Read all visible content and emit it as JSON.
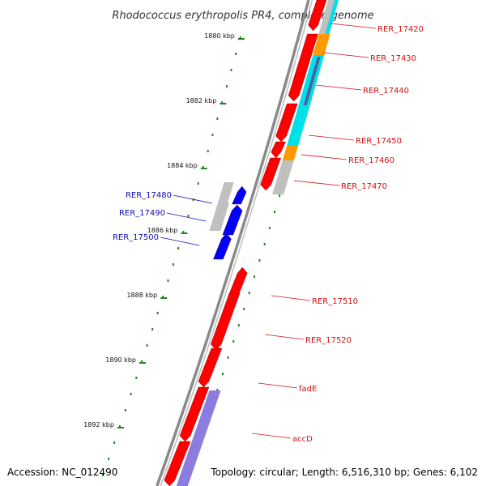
{
  "title": "Rhodococcus erythropolis PR4, complete genome",
  "accession": "Accession: NC_012490",
  "topology": "Topology: circular; Length: 6,516,310 bp; Genes: 6,102",
  "colors": {
    "backbone": "#8a8a8a",
    "ticks": "#1a8a1a",
    "right_label": "#d01010",
    "left_label": "#1010b0",
    "red_gene": "#ff0000",
    "blue_gene": "#0000ff",
    "cyan_feature": "#00e0e8",
    "orange_feature": "#ff9900",
    "grey_feature": "#c0c0c0",
    "purple_feature": "#8c7ce0"
  },
  "kbp_labels": [
    {
      "text": "1880 kbp",
      "value": 1880
    },
    {
      "text": "1882 kbp",
      "value": 1882
    },
    {
      "text": "1884 kbp",
      "value": 1884
    },
    {
      "text": "1886 kbp",
      "value": 1886
    },
    {
      "text": "1888 kbp",
      "value": 1888
    },
    {
      "text": "1890 kbp",
      "value": 1890
    },
    {
      "text": "1892 kbp",
      "value": 1892
    }
  ],
  "right_labels": [
    {
      "text": "RER_17420",
      "pos": 1879.45
    },
    {
      "text": "RER_17430",
      "pos": 1880.35
    },
    {
      "text": "RER_17440",
      "pos": 1881.35
    },
    {
      "text": "RER_17450",
      "pos": 1882.9
    },
    {
      "text": "RER_17460",
      "pos": 1883.5
    },
    {
      "text": "RER_17470",
      "pos": 1884.3
    },
    {
      "text": "RER_17510",
      "pos": 1887.85
    },
    {
      "text": "RER_17520",
      "pos": 1889.05
    },
    {
      "text": "fadE",
      "pos": 1890.55
    },
    {
      "text": "accD",
      "pos": 1892.1
    }
  ],
  "left_labels": [
    {
      "text": "RER_17480",
      "pos": 1884.45
    },
    {
      "text": "RER_17490",
      "pos": 1885.0
    },
    {
      "text": "RER_17500",
      "pos": 1885.75
    }
  ]
}
